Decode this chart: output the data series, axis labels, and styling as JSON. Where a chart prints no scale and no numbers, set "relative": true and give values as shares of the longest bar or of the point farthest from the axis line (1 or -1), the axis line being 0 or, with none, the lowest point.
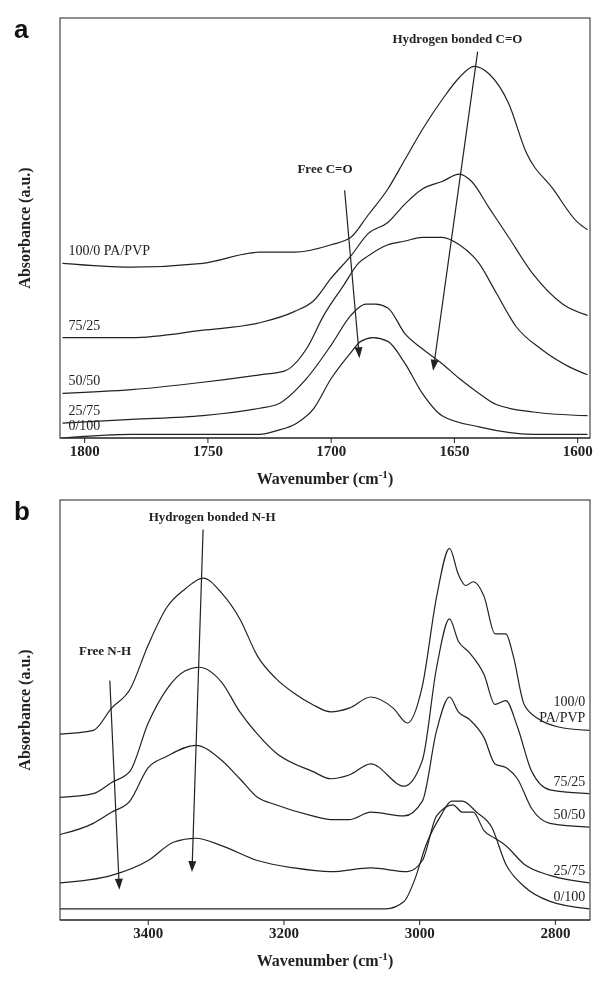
{
  "chart_data": [
    {
      "type": "line",
      "title": "a",
      "xlabel": "Wavenumber (cm$^{-1}$)",
      "ylabel": "Absorbance (a.u.)",
      "relative": true,
      "xlim": [
        1810,
        1595
      ],
      "xticks": [
        1800,
        1750,
        1700,
        1650,
        1600
      ],
      "legend": "left",
      "grid": false,
      "annotations": [
        "Hydrogen bonded C=O",
        "Free C=O"
      ],
      "series": [
        {
          "name": "100/0 PA/PVP",
          "color": "#222222",
          "x": [
            1809,
            1781,
            1752,
            1729,
            1715,
            1700,
            1692,
            1685,
            1677,
            1670,
            1663,
            1655,
            1648,
            1642,
            1636,
            1628,
            1621,
            1610,
            1600,
            1596
          ],
          "values": [
            0.47,
            0.46,
            0.47,
            0.5,
            0.5,
            0.52,
            0.54,
            0.6,
            0.67,
            0.75,
            0.83,
            0.91,
            0.97,
            1,
            0.98,
            0.9,
            0.77,
            0.67,
            0.58,
            0.56
          ]
        },
        {
          "name": "75/25",
          "color": "#222222",
          "x": [
            1809,
            1781,
            1752,
            1729,
            1715,
            1707,
            1700,
            1692,
            1685,
            1677,
            1670,
            1663,
            1655,
            1648,
            1643,
            1636,
            1628,
            1618,
            1606,
            1596
          ],
          "values": [
            0.27,
            0.27,
            0.29,
            0.31,
            0.34,
            0.37,
            0.43,
            0.49,
            0.55,
            0.58,
            0.63,
            0.67,
            0.69,
            0.71,
            0.69,
            0.62,
            0.54,
            0.44,
            0.36,
            0.33
          ]
        },
        {
          "name": "50/50",
          "color": "#222222",
          "x": [
            1809,
            1781,
            1752,
            1729,
            1719,
            1710,
            1703,
            1695,
            1689,
            1685,
            1677,
            1670,
            1663,
            1655,
            1648,
            1640,
            1633,
            1625,
            1615,
            1603,
            1596
          ],
          "values": [
            0.12,
            0.13,
            0.15,
            0.17,
            0.18,
            0.24,
            0.33,
            0.41,
            0.47,
            0.49,
            0.52,
            0.53,
            0.54,
            0.54,
            0.52,
            0.47,
            0.39,
            0.3,
            0.24,
            0.19,
            0.17
          ]
        },
        {
          "name": "25/75",
          "color": "#222222",
          "x": [
            1809,
            1781,
            1752,
            1729,
            1722,
            1710,
            1700,
            1692,
            1686,
            1682,
            1677,
            1670,
            1663,
            1655,
            1648,
            1640,
            1633,
            1618,
            1596
          ],
          "values": [
            0.04,
            0.05,
            0.06,
            0.08,
            0.09,
            0.16,
            0.25,
            0.33,
            0.36,
            0.36,
            0.35,
            0.28,
            0.24,
            0.2,
            0.16,
            0.12,
            0.09,
            0.07,
            0.06
          ]
        },
        {
          "name": "0/100",
          "color": "#222222",
          "x": [
            1809,
            1781,
            1752,
            1729,
            1722,
            1714,
            1707,
            1700,
            1692,
            1688,
            1683,
            1677,
            1670,
            1663,
            1655,
            1640,
            1618,
            1596
          ],
          "values": [
            0.0,
            0.01,
            0.01,
            0.01,
            0.02,
            0.04,
            0.08,
            0.16,
            0.23,
            0.26,
            0.27,
            0.26,
            0.2,
            0.12,
            0.06,
            0.03,
            0.01,
            0.01
          ]
        }
      ]
    },
    {
      "type": "line",
      "title": "b",
      "xlabel": "Wavenumber (cm$^{-1}$)",
      "ylabel": "Absorbance (a.u.)",
      "relative": true,
      "xlim": [
        3530,
        2749
      ],
      "xticks": [
        3400,
        3200,
        3000,
        2800
      ],
      "legend": "right",
      "grid": false,
      "annotations": [
        "Hydrogen bonded N-H",
        "Free N-H"
      ],
      "series": [
        {
          "name": "100/0 PA/PVP",
          "color": "#222222",
          "x": [
            3530,
            3481,
            3454,
            3427,
            3400,
            3373,
            3346,
            3319,
            3292,
            3265,
            3239,
            3212,
            3185,
            3158,
            3131,
            3104,
            3072,
            3039,
            3018,
            2996,
            2975,
            2956,
            2943,
            2932,
            2921,
            2905,
            2889,
            2873,
            2862,
            2846,
            2824,
            2797,
            2750
          ],
          "values": [
            0.5,
            0.51,
            0.57,
            0.62,
            0.74,
            0.84,
            0.89,
            0.92,
            0.88,
            0.81,
            0.71,
            0.65,
            0.61,
            0.58,
            0.56,
            0.57,
            0.6,
            0.57,
            0.53,
            0.63,
            0.87,
            1,
            0.93,
            0.9,
            0.91,
            0.87,
            0.77,
            0.77,
            0.71,
            0.58,
            0.54,
            0.52,
            0.51
          ]
        },
        {
          "name": "75/25",
          "color": "#222222",
          "x": [
            3530,
            3481,
            3454,
            3427,
            3400,
            3373,
            3346,
            3325,
            3292,
            3265,
            3239,
            3212,
            3158,
            3131,
            3104,
            3072,
            3023,
            2996,
            2975,
            2956,
            2943,
            2927,
            2905,
            2889,
            2873,
            2856,
            2835,
            2808,
            2750
          ],
          "values": [
            0.33,
            0.34,
            0.37,
            0.4,
            0.53,
            0.62,
            0.67,
            0.68,
            0.64,
            0.56,
            0.5,
            0.45,
            0.4,
            0.38,
            0.39,
            0.42,
            0.36,
            0.43,
            0.68,
            0.81,
            0.75,
            0.72,
            0.66,
            0.58,
            0.59,
            0.52,
            0.4,
            0.35,
            0.34
          ]
        },
        {
          "name": "50/50",
          "color": "#222222",
          "x": [
            3530,
            3481,
            3454,
            3427,
            3400,
            3373,
            3330,
            3292,
            3265,
            3239,
            3212,
            3158,
            3131,
            3104,
            3072,
            3023,
            2996,
            2975,
            2956,
            2943,
            2927,
            2905,
            2889,
            2873,
            2856,
            2835,
            2808,
            2750
          ],
          "values": [
            0.23,
            0.26,
            0.29,
            0.32,
            0.41,
            0.44,
            0.47,
            0.43,
            0.38,
            0.33,
            0.31,
            0.28,
            0.27,
            0.27,
            0.29,
            0.28,
            0.32,
            0.51,
            0.6,
            0.56,
            0.54,
            0.49,
            0.42,
            0.41,
            0.38,
            0.3,
            0.26,
            0.25
          ]
        },
        {
          "name": "25/75",
          "color": "#222222",
          "x": [
            3530,
            3454,
            3400,
            3362,
            3330,
            3292,
            3239,
            3185,
            3131,
            3072,
            3018,
            2996,
            2975,
            2951,
            2937,
            2921,
            2905,
            2889,
            2873,
            2846,
            2808,
            2750
          ],
          "values": [
            0.1,
            0.12,
            0.16,
            0.21,
            0.22,
            0.2,
            0.16,
            0.14,
            0.13,
            0.14,
            0.13,
            0.16,
            0.28,
            0.31,
            0.29,
            0.29,
            0.24,
            0.22,
            0.2,
            0.15,
            0.12,
            0.1
          ]
        },
        {
          "name": "0/100",
          "color": "#222222",
          "x": [
            3530,
            3319,
            3104,
            3050,
            3023,
            3007,
            2991,
            2969,
            2953,
            2937,
            2916,
            2894,
            2873,
            2846,
            2808,
            2750
          ],
          "values": [
            0.03,
            0.03,
            0.03,
            0.03,
            0.05,
            0.11,
            0.2,
            0.28,
            0.32,
            0.32,
            0.29,
            0.25,
            0.15,
            0.09,
            0.05,
            0.03
          ]
        }
      ]
    }
  ]
}
